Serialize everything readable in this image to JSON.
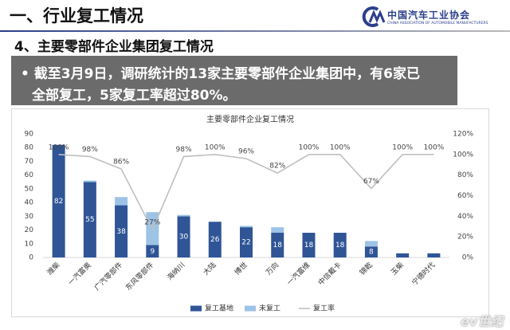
{
  "header": {
    "title": "一、行业复工情况",
    "organization": "中国汽车工业协会",
    "organization_en": "CHINA ASSOCIATION OF AUTOMOBILE MANUFACTURERS",
    "subtitle": "4、主要零部件企业集团复工情况"
  },
  "bullet": {
    "lines": [
      "截至3月9日，调研统计的13家主要零部件企业集团中，有6家已",
      "全部复工，5家复工率超过80%。"
    ]
  },
  "watermark": "ev世纪",
  "chart_data": {
    "type": "bar",
    "title": "主要零部件企业复工情况",
    "stacked": true,
    "categories": [
      "潍柴",
      "一汽富奥",
      "广汽零部件",
      "东风零部件",
      "海纳川",
      "大陆",
      "博世",
      "万向",
      "一汽富维",
      "中信戴卡",
      "锦乾",
      "玉柴",
      "宁德时代"
    ],
    "series": [
      {
        "name": "复工基地",
        "color": "#2f5597",
        "values": [
          82,
          55,
          38,
          9,
          30,
          26,
          22,
          18,
          18,
          18,
          8,
          3,
          3
        ],
        "value_labels": [
          "82",
          "55",
          "38",
          "9",
          "30",
          "26",
          "22",
          "18",
          "18",
          "18",
          "8",
          null,
          null
        ]
      },
      {
        "name": "未复工",
        "color": "#9dc3e6",
        "values": [
          0,
          1,
          6,
          24,
          1,
          0,
          1,
          4,
          0,
          0,
          4,
          0,
          0
        ]
      },
      {
        "name": "复工率",
        "type": "line",
        "axis": "y2",
        "color": "#bfbfbf",
        "values": [
          100,
          98,
          86,
          27,
          98,
          100,
          96,
          82,
          100,
          100,
          67,
          100,
          100
        ],
        "value_labels": [
          "100%",
          "98%",
          "86%",
          "27%",
          "98%",
          "100%",
          "96%",
          "82%",
          "100%",
          "100%",
          "67%",
          "100%",
          "100%"
        ]
      }
    ],
    "ylim": [
      0,
      90
    ],
    "yticks": [
      0,
      10,
      20,
      30,
      40,
      50,
      60,
      70,
      80,
      90
    ],
    "y2lim": [
      0,
      120
    ],
    "y2ticks": [
      {
        "value": 0,
        "label": "0%"
      },
      {
        "value": 20,
        "label": "20%"
      },
      {
        "value": 40,
        "label": "40%"
      },
      {
        "value": 60,
        "label": "60%"
      },
      {
        "value": 80,
        "label": "80%"
      },
      {
        "value": 100,
        "label": "100%"
      },
      {
        "value": 120,
        "label": "120%"
      }
    ],
    "grid": false,
    "legend": "bottom"
  }
}
